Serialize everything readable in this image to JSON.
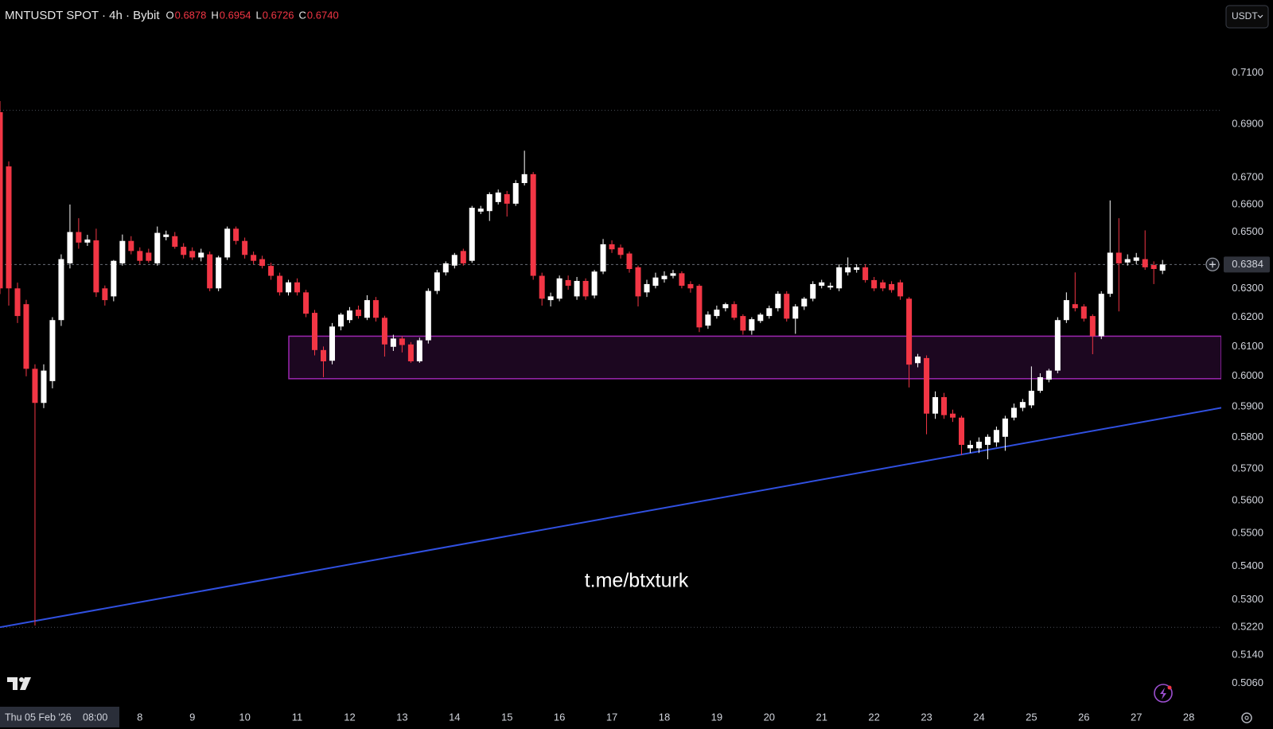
{
  "chart_data": {
    "type": "candlestick",
    "title": "MNTUSDT SPOT · 4h · Bybit",
    "ohlc_legend": [
      {
        "key": "O",
        "text": "0.6878"
      },
      {
        "key": "H",
        "text": "0.6954"
      },
      {
        "key": "L",
        "text": "0.6726"
      },
      {
        "key": "C",
        "text": "0.6740"
      }
    ],
    "currency": "USDT",
    "watermark": "t.me/btxturk",
    "crosshair_date": "Thu 05 Feb '26",
    "crosshair_time": "08:00",
    "up_color": "#ffffff",
    "down_color": "#f23645",
    "log_scale": true,
    "grid": false,
    "xlim": [
      5.333,
      28.62
    ],
    "ylim": [
      0.5006,
      0.7393
    ],
    "xticks": [
      8,
      9,
      10,
      11,
      12,
      13,
      14,
      15,
      16,
      17,
      18,
      19,
      20,
      21,
      22,
      23,
      24,
      25,
      26,
      27,
      28
    ],
    "yticks": [
      {
        "value": 0.71,
        "label": "0.7100"
      },
      {
        "value": 0.69,
        "label": "0.6900"
      },
      {
        "value": 0.67,
        "label": "0.6700"
      },
      {
        "value": 0.66,
        "label": "0.6600"
      },
      {
        "value": 0.65,
        "label": "0.6500"
      },
      {
        "value": 0.63,
        "label": "0.6300"
      },
      {
        "value": 0.62,
        "label": "0.6200"
      },
      {
        "value": 0.61,
        "label": "0.6100"
      },
      {
        "value": 0.6,
        "label": "0.6000"
      },
      {
        "value": 0.59,
        "label": "0.5900"
      },
      {
        "value": 0.58,
        "label": "0.5800"
      },
      {
        "value": 0.57,
        "label": "0.5700"
      },
      {
        "value": 0.56,
        "label": "0.5600"
      },
      {
        "value": 0.55,
        "label": "0.5500"
      },
      {
        "value": 0.54,
        "label": "0.5400"
      },
      {
        "value": 0.53,
        "label": "0.5300"
      },
      {
        "value": 0.522,
        "label": "0.5220"
      },
      {
        "value": 0.514,
        "label": "0.5140"
      },
      {
        "value": 0.506,
        "label": "0.5060"
      }
    ],
    "last_price": {
      "value": 0.6384,
      "label": "0.6384"
    },
    "hlines": [
      0.6954,
      0.522
    ],
    "zone": {
      "color": "#9c27b0",
      "x": [
        10.84,
        28.62
      ],
      "y": [
        0.5992,
        0.6135
      ]
    },
    "trendline": {
      "color": "#3050e0",
      "x": [
        5.333,
        28.62
      ],
      "y": [
        0.522,
        0.5896
      ]
    },
    "x": [
      5.333,
      5.5,
      5.667,
      5.833,
      6,
      6.167,
      6.333,
      6.5,
      6.667,
      6.833,
      7,
      7.167,
      7.333,
      7.5,
      7.667,
      7.833,
      8,
      8.167,
      8.333,
      8.5,
      8.667,
      8.833,
      9,
      9.167,
      9.333,
      9.5,
      9.667,
      9.833,
      10,
      10.167,
      10.333,
      10.5,
      10.667,
      10.833,
      11,
      11.167,
      11.333,
      11.5,
      11.667,
      11.833,
      12,
      12.167,
      12.333,
      12.5,
      12.667,
      12.833,
      13,
      13.167,
      13.333,
      13.5,
      13.667,
      13.833,
      14,
      14.167,
      14.333,
      14.5,
      14.667,
      14.833,
      15,
      15.167,
      15.333,
      15.5,
      15.667,
      15.833,
      16,
      16.167,
      16.333,
      16.5,
      16.667,
      16.833,
      17,
      17.167,
      17.333,
      17.5,
      17.667,
      17.833,
      18,
      18.167,
      18.333,
      18.5,
      18.667,
      18.833,
      19,
      19.167,
      19.333,
      19.5,
      19.667,
      19.833,
      20,
      20.167,
      20.333,
      20.5,
      20.667,
      20.833,
      21,
      21.167,
      21.333,
      21.5,
      21.667,
      21.833,
      22,
      22.167,
      22.333,
      22.5,
      22.667,
      22.833,
      23,
      23.167,
      23.333,
      23.5,
      23.667,
      23.833,
      24,
      24.167,
      24.333,
      24.5,
      24.667,
      24.833,
      25,
      25.167,
      25.333,
      25.5,
      25.667,
      25.833,
      26,
      26.167,
      26.333,
      26.5,
      26.667,
      26.833,
      27,
      27.167,
      27.333,
      27.5
    ],
    "open": [
      0.6947,
      0.6741,
      0.63,
      0.6245,
      0.6025,
      0.5912,
      0.5984,
      0.619,
      0.6388,
      0.65,
      0.6462,
      0.647,
      0.63,
      0.6272,
      0.6388,
      0.6468,
      0.6432,
      0.6426,
      0.6388,
      0.6482,
      0.6485,
      0.6447,
      0.6432,
      0.6409,
      0.642,
      0.63,
      0.6409,
      0.6512,
      0.6468,
      0.6418,
      0.6403,
      0.6379,
      0.6344,
      0.6286,
      0.6321,
      0.6286,
      0.6215,
      0.6088,
      0.6052,
      0.6168,
      0.619,
      0.6226,
      0.6198,
      0.6259,
      0.6198,
      0.6099,
      0.6127,
      0.6107,
      0.605,
      0.6121,
      0.6291,
      0.6356,
      0.638,
      0.6432,
      0.6397,
      0.6574,
      0.6576,
      0.6609,
      0.6638,
      0.6603,
      0.6679,
      0.6712,
      0.6344,
      0.6259,
      0.6264,
      0.6329,
      0.6272,
      0.6326,
      0.6275,
      0.6359,
      0.6456,
      0.6444,
      0.6423,
      0.6374,
      0.6286,
      0.6309,
      0.6332,
      0.6344,
      0.6353,
      0.6315,
      0.6309,
      0.6171,
      0.6204,
      0.6231,
      0.6245,
      0.6204,
      0.6154,
      0.6187,
      0.6204,
      0.6231,
      0.6281,
      0.6195,
      0.6237,
      0.6264,
      0.6309,
      0.6303,
      0.63,
      0.6356,
      0.6365,
      0.6374,
      0.6329,
      0.6321,
      0.6315,
      0.6321,
      0.6264,
      0.6044,
      0.6061,
      0.5877,
      0.5931,
      0.5877,
      0.5864,
      0.5765,
      0.5765,
      0.5776,
      0.5784,
      0.5802,
      0.5864,
      0.5896,
      0.5904,
      0.5952,
      0.5989,
      0.6019,
      0.619,
      0.6245,
      0.6237,
      0.6204,
      0.6135,
      0.6281,
      0.6426,
      0.6391,
      0.6397,
      0.6403,
      0.6382,
      0.6362
    ],
    "high": [
      0.699,
      0.676,
      0.632,
      0.626,
      0.604,
      0.604,
      0.62,
      0.642,
      0.66,
      0.655,
      0.649,
      0.6512,
      0.631,
      0.64,
      0.6491,
      0.6485,
      0.6445,
      0.644,
      0.652,
      0.6505,
      0.65,
      0.646,
      0.6445,
      0.644,
      0.643,
      0.6415,
      0.652,
      0.652,
      0.648,
      0.643,
      0.6415,
      0.639,
      0.6355,
      0.633,
      0.6335,
      0.6295,
      0.6225,
      0.61,
      0.618,
      0.6215,
      0.6235,
      0.624,
      0.6276,
      0.627,
      0.6205,
      0.614,
      0.6135,
      0.6115,
      0.613,
      0.63,
      0.6365,
      0.6395,
      0.6425,
      0.644,
      0.6595,
      0.6595,
      0.6645,
      0.6655,
      0.665,
      0.669,
      0.68,
      0.672,
      0.6355,
      0.6285,
      0.6345,
      0.6345,
      0.634,
      0.6335,
      0.6365,
      0.6475,
      0.647,
      0.6455,
      0.643,
      0.638,
      0.633,
      0.6355,
      0.636,
      0.6365,
      0.636,
      0.6325,
      0.6315,
      0.622,
      0.624,
      0.625,
      0.6255,
      0.621,
      0.62,
      0.6215,
      0.624,
      0.629,
      0.629,
      0.6245,
      0.627,
      0.6325,
      0.633,
      0.632,
      0.6385,
      0.6409,
      0.6385,
      0.6385,
      0.634,
      0.633,
      0.6325,
      0.633,
      0.627,
      0.6075,
      0.607,
      0.595,
      0.5945,
      0.589,
      0.587,
      0.579,
      0.58,
      0.581,
      0.5835,
      0.587,
      0.591,
      0.5925,
      0.6033,
      0.601,
      0.6025,
      0.62,
      0.6286,
      0.6356,
      0.6245,
      0.621,
      0.629,
      0.6615,
      0.655,
      0.642,
      0.6425,
      0.6506,
      0.6395,
      0.64
    ],
    "low": [
      0.628,
      0.624,
      0.618,
      0.6,
      0.5225,
      0.5895,
      0.596,
      0.617,
      0.637,
      0.644,
      0.645,
      0.627,
      0.624,
      0.6255,
      0.638,
      0.642,
      0.6385,
      0.639,
      0.638,
      0.647,
      0.644,
      0.6405,
      0.64,
      0.6395,
      0.629,
      0.629,
      0.64,
      0.6455,
      0.6405,
      0.6385,
      0.637,
      0.633,
      0.6275,
      0.6275,
      0.6275,
      0.62,
      0.607,
      0.5997,
      0.604,
      0.6155,
      0.618,
      0.6195,
      0.619,
      0.6185,
      0.6066,
      0.6085,
      0.608,
      0.6045,
      0.6045,
      0.611,
      0.628,
      0.6345,
      0.637,
      0.638,
      0.639,
      0.6565,
      0.654,
      0.66,
      0.6556,
      0.6595,
      0.667,
      0.633,
      0.624,
      0.6237,
      0.6255,
      0.6295,
      0.626,
      0.626,
      0.6265,
      0.635,
      0.6425,
      0.6405,
      0.6355,
      0.6237,
      0.627,
      0.63,
      0.632,
      0.6335,
      0.63,
      0.6285,
      0.6149,
      0.616,
      0.6195,
      0.622,
      0.619,
      0.614,
      0.614,
      0.618,
      0.6195,
      0.622,
      0.6185,
      0.6143,
      0.6225,
      0.6255,
      0.63,
      0.6295,
      0.629,
      0.6345,
      0.6355,
      0.632,
      0.629,
      0.629,
      0.6285,
      0.626,
      0.5963,
      0.603,
      0.581,
      0.586,
      0.586,
      0.585,
      0.5744,
      0.575,
      0.575,
      0.573,
      0.577,
      0.5757,
      0.5855,
      0.5885,
      0.5895,
      0.5945,
      0.598,
      0.601,
      0.618,
      0.622,
      0.6185,
      0.6074,
      0.6125,
      0.627,
      0.622,
      0.638,
      0.6385,
      0.6365,
      0.6315,
      0.635
    ],
    "close": [
      0.63,
      0.63,
      0.6204,
      0.6025,
      0.5912,
      0.6019,
      0.619,
      0.6403,
      0.65,
      0.6462,
      0.6473,
      0.6286,
      0.6259,
      0.6397,
      0.6468,
      0.6432,
      0.6397,
      0.6397,
      0.6497,
      0.6491,
      0.6447,
      0.6418,
      0.6409,
      0.6426,
      0.63,
      0.6409,
      0.6512,
      0.6468,
      0.6418,
      0.6397,
      0.6379,
      0.6344,
      0.6286,
      0.6321,
      0.6286,
      0.6212,
      0.6088,
      0.605,
      0.6168,
      0.6209,
      0.6223,
      0.6204,
      0.6259,
      0.6198,
      0.6107,
      0.6127,
      0.6105,
      0.605,
      0.6121,
      0.6291,
      0.6356,
      0.6388,
      0.6418,
      0.6388,
      0.6588,
      0.6585,
      0.6638,
      0.6644,
      0.6603,
      0.6679,
      0.6712,
      0.6344,
      0.6264,
      0.6272,
      0.6335,
      0.6309,
      0.6326,
      0.6272,
      0.6359,
      0.6456,
      0.6438,
      0.6418,
      0.6368,
      0.6272,
      0.6315,
      0.6338,
      0.6344,
      0.6353,
      0.6309,
      0.63,
      0.6165,
      0.6209,
      0.6226,
      0.6245,
      0.6198,
      0.6154,
      0.6193,
      0.6209,
      0.6231,
      0.6281,
      0.6195,
      0.6237,
      0.6264,
      0.6315,
      0.6321,
      0.6309,
      0.6374,
      0.6374,
      0.6374,
      0.6329,
      0.63,
      0.63,
      0.6294,
      0.6272,
      0.6039,
      0.6066,
      0.5877,
      0.5931,
      0.5872,
      0.5864,
      0.5776,
      0.5776,
      0.5786,
      0.5802,
      0.5824,
      0.5861,
      0.5896,
      0.5915,
      0.5952,
      0.5997,
      0.6019,
      0.619,
      0.6259,
      0.6231,
      0.6195,
      0.6135,
      0.6281,
      0.6426,
      0.6388,
      0.6403,
      0.6409,
      0.6374,
      0.6368,
      0.6384
    ]
  }
}
